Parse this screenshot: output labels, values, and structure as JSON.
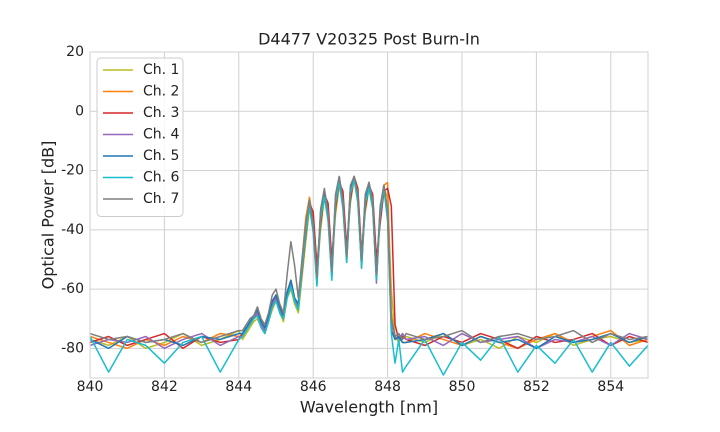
{
  "chart_data": {
    "type": "line",
    "title": "D4477 V20325 Post Burn-In",
    "x_label": "Wavelength [nm]",
    "y_label": "Optical Power [dB]",
    "xlim": [
      840,
      855
    ],
    "ylim": [
      -90,
      20
    ],
    "xticks": [
      840,
      842,
      844,
      846,
      848,
      850,
      852,
      854
    ],
    "yticks": [
      -80,
      -60,
      -40,
      -20,
      0,
      20
    ],
    "grid": true,
    "legend": "upper-left",
    "x": [
      840,
      840.5,
      841,
      841.5,
      842,
      842.5,
      843,
      843.5,
      844,
      844.1,
      844.2,
      844.3,
      844.4,
      844.5,
      844.6,
      844.7,
      844.8,
      844.9,
      845.0,
      845.1,
      845.2,
      845.3,
      845.4,
      845.5,
      845.6,
      845.7,
      845.8,
      845.9,
      846.0,
      846.1,
      846.2,
      846.3,
      846.4,
      846.5,
      846.6,
      846.7,
      846.8,
      846.9,
      847.0,
      847.1,
      847.2,
      847.3,
      847.4,
      847.5,
      847.6,
      847.7,
      847.8,
      847.9,
      848.0,
      848.1,
      848.2,
      848.3,
      848.4,
      848.5,
      849,
      849.5,
      850,
      850.5,
      851,
      851.5,
      852,
      852.5,
      853,
      853.5,
      854,
      854.5,
      855
    ],
    "series": [
      {
        "name": "Ch. 1",
        "color": "#bcbd22",
        "values": [
          -77,
          -79,
          -76,
          -80,
          -78,
          -75,
          -79,
          -77,
          -74,
          -77,
          -75,
          -73,
          -71,
          -70,
          -73,
          -75,
          -71,
          -67,
          -64,
          -68,
          -71,
          -63,
          -60,
          -65,
          -68,
          -56,
          -44,
          -33,
          -38,
          -55,
          -40,
          -29,
          -33,
          -52,
          -35,
          -25,
          -29,
          -47,
          -31,
          -23,
          -27,
          -48,
          -34,
          -26,
          -29,
          -51,
          -36,
          -26,
          -29,
          -60,
          -76,
          -78,
          -76,
          -76,
          -78,
          -75,
          -79,
          -77,
          -80,
          -76,
          -78,
          -75,
          -79,
          -77,
          -76,
          -78,
          -77
        ]
      },
      {
        "name": "Ch. 2",
        "color": "#ff7f0e",
        "values": [
          -76,
          -78,
          -80,
          -77,
          -79,
          -76,
          -78,
          -75,
          -76,
          -76,
          -74,
          -71,
          -70,
          -69,
          -72,
          -74,
          -70,
          -66,
          -64,
          -67,
          -69,
          -61,
          -57,
          -63,
          -65,
          -50,
          -36,
          -29,
          -37,
          -57,
          -34,
          -27,
          -34,
          -55,
          -31,
          -24,
          -31,
          -51,
          -28,
          -23,
          -29,
          -53,
          -31,
          -26,
          -30,
          -56,
          -33,
          -25,
          -24,
          -68,
          -77,
          -76,
          -78,
          -78,
          -75,
          -77,
          -79,
          -76,
          -78,
          -80,
          -77,
          -75,
          -78,
          -76,
          -74,
          -79,
          -77
        ]
      },
      {
        "name": "Ch. 3",
        "color": "#d62728",
        "values": [
          -78,
          -76,
          -79,
          -77,
          -75,
          -80,
          -76,
          -78,
          -77,
          -75,
          -73,
          -72,
          -70,
          -68,
          -71,
          -73,
          -69,
          -65,
          -62,
          -66,
          -69,
          -62,
          -58,
          -64,
          -66,
          -54,
          -42,
          -31,
          -34,
          -52,
          -38,
          -28,
          -31,
          -50,
          -33,
          -24,
          -27,
          -46,
          -30,
          -22,
          -26,
          -48,
          -33,
          -25,
          -28,
          -50,
          -38,
          -27,
          -26,
          -32,
          -72,
          -77,
          -76,
          -77,
          -79,
          -76,
          -78,
          -75,
          -77,
          -80,
          -76,
          -78,
          -77,
          -75,
          -79,
          -76,
          -78
        ]
      },
      {
        "name": "Ch. 4",
        "color": "#9467bd",
        "values": [
          -79,
          -77,
          -78,
          -76,
          -80,
          -77,
          -75,
          -79,
          -76,
          -76,
          -74,
          -72,
          -70,
          -68,
          -72,
          -74,
          -70,
          -65,
          -63,
          -67,
          -70,
          -62,
          -58,
          -64,
          -66,
          -52,
          -40,
          -31,
          -40,
          -58,
          -35,
          -28,
          -36,
          -56,
          -30,
          -23,
          -32,
          -50,
          -27,
          -22,
          -30,
          -52,
          -30,
          -25,
          -32,
          -58,
          -34,
          -25,
          -36,
          -72,
          -76,
          -77,
          -75,
          -77,
          -76,
          -79,
          -75,
          -78,
          -77,
          -76,
          -80,
          -77,
          -78,
          -76,
          -79,
          -75,
          -77
        ]
      },
      {
        "name": "Ch. 5",
        "color": "#1f77b4",
        "values": [
          -77,
          -80,
          -76,
          -78,
          -77,
          -79,
          -76,
          -77,
          -75,
          -75,
          -73,
          -71,
          -69,
          -67,
          -71,
          -73,
          -69,
          -64,
          -62,
          -66,
          -69,
          -61,
          -57,
          -63,
          -65,
          -51,
          -39,
          -30,
          -39,
          -57,
          -34,
          -27,
          -35,
          -55,
          -29,
          -22,
          -31,
          -49,
          -26,
          -22,
          -29,
          -51,
          -29,
          -24,
          -31,
          -56,
          -33,
          -25,
          -34,
          -74,
          -77,
          -76,
          -78,
          -78,
          -77,
          -75,
          -79,
          -76,
          -78,
          -77,
          -80,
          -76,
          -78,
          -77,
          -75,
          -78,
          -76
        ]
      },
      {
        "name": "Ch. 6",
        "color": "#17becf",
        "values": [
          -76,
          -88,
          -77,
          -79,
          -85,
          -78,
          -76,
          -88,
          -77,
          -76,
          -74,
          -72,
          -70,
          -69,
          -73,
          -75,
          -71,
          -66,
          -64,
          -68,
          -70,
          -63,
          -59,
          -64,
          -67,
          -53,
          -41,
          -32,
          -41,
          -59,
          -36,
          -29,
          -37,
          -57,
          -31,
          -24,
          -33,
          -51,
          -28,
          -23,
          -31,
          -53,
          -31,
          -26,
          -33,
          -57,
          -35,
          -26,
          -37,
          -75,
          -85,
          -77,
          -88,
          -86,
          -77,
          -89,
          -78,
          -84,
          -76,
          -88,
          -79,
          -85,
          -77,
          -88,
          -78,
          -86,
          -79
        ]
      },
      {
        "name": "Ch. 7",
        "color": "#7f7f7f",
        "values": [
          -75,
          -77,
          -76,
          -78,
          -77,
          -75,
          -78,
          -76,
          -74,
          -74,
          -72,
          -70,
          -69,
          -66,
          -70,
          -72,
          -68,
          -62,
          -60,
          -65,
          -68,
          -55,
          -44,
          -52,
          -63,
          -50,
          -38,
          -30,
          -38,
          -56,
          -33,
          -26,
          -34,
          -54,
          -28,
          -22,
          -30,
          -49,
          -25,
          -22,
          -28,
          -50,
          -28,
          -24,
          -30,
          -55,
          -32,
          -25,
          -33,
          -70,
          -76,
          -75,
          -77,
          -75,
          -77,
          -76,
          -74,
          -78,
          -76,
          -75,
          -77,
          -76,
          -74,
          -78,
          -75,
          -77,
          -76
        ]
      }
    ]
  }
}
